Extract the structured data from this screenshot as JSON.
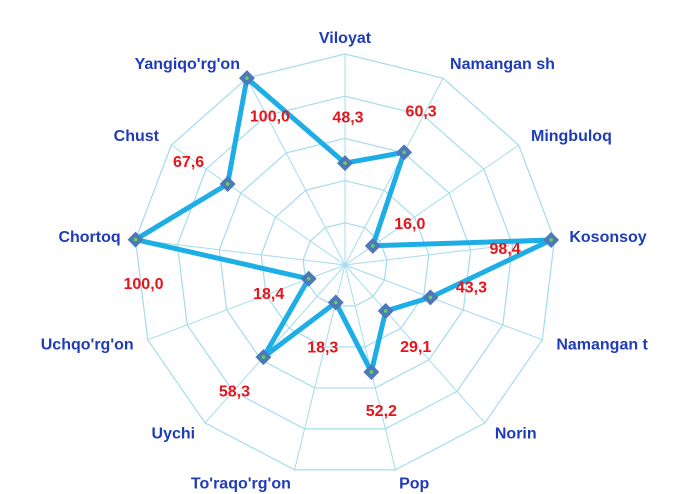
{
  "chart_data": {
    "type": "radar",
    "categories": [
      "Viloyat",
      "Namangan sh",
      "Mingbuloq",
      "Kosonsoy",
      "Namangan t",
      "Norin",
      "Pop",
      "To'raqo'rg'on",
      "Uychi",
      "Uchqo'rg'on",
      "Chortoq",
      "Chust",
      "Yangiqo'rg'on"
    ],
    "values": [
      48.3,
      60.3,
      16.0,
      98.4,
      43.3,
      29.1,
      52.2,
      18.3,
      58.3,
      18.4,
      100.0,
      67.6,
      100.0
    ],
    "value_labels": [
      "48,3",
      "60,3",
      "16,0",
      "98,4",
      "43,3",
      "29,1",
      "52,2",
      "18,3",
      "58,3",
      "18,4",
      "100,0",
      "67,6",
      "100,0"
    ],
    "color": "#1eaee6",
    "marker_color": "#4f78b8",
    "ylim": [
      0,
      100
    ],
    "yticks": [
      0,
      20,
      40,
      60,
      80,
      100
    ],
    "grid": true
  }
}
